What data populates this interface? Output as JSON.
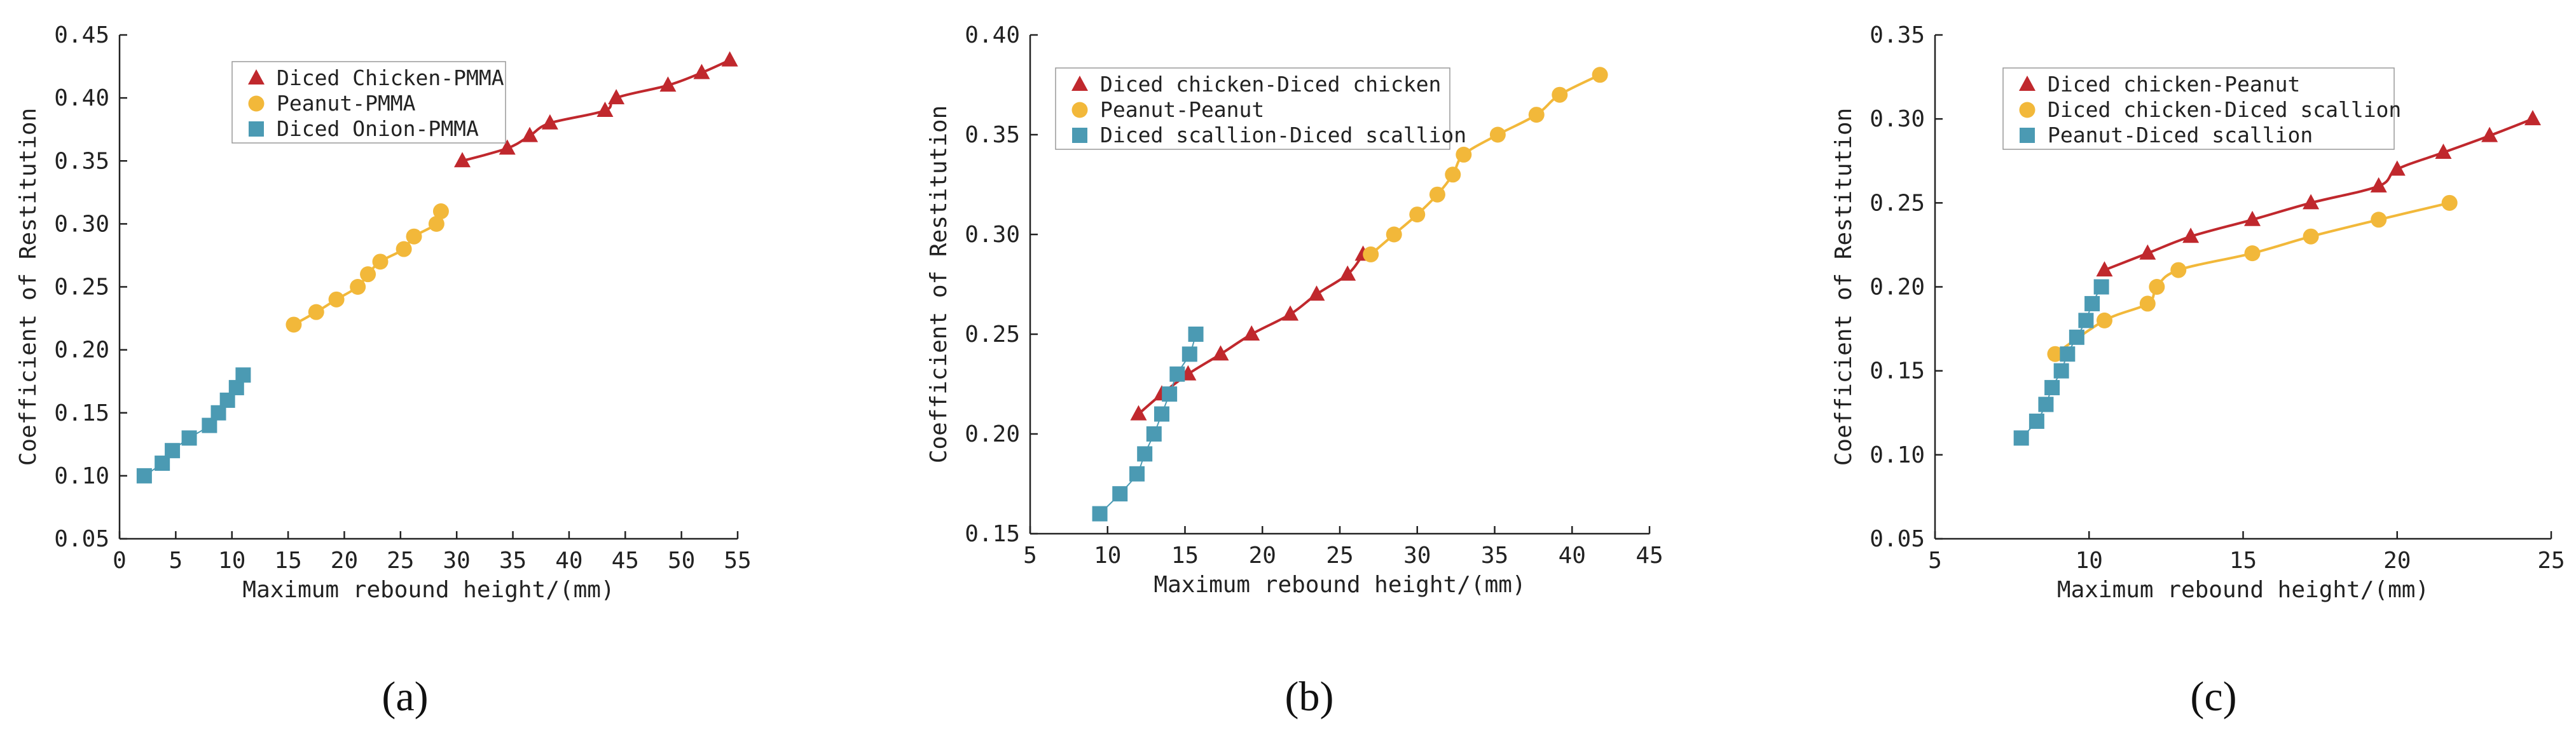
{
  "colors": {
    "red": "#c0282d",
    "yellow": "#f2b83a",
    "blue": "#4b9ab3"
  },
  "chart_data": [
    {
      "type": "scatter",
      "panel_label": "(a)",
      "xlabel": "Maximum rebound height/(mm)",
      "ylabel": "Coefficient of Restitution",
      "xlim": [
        0,
        55
      ],
      "ylim": [
        0.05,
        0.45
      ],
      "xticks": [
        "0",
        "5",
        "10",
        "15",
        "20",
        "25",
        "30",
        "35",
        "40",
        "45",
        "50",
        "55"
      ],
      "yticks": [
        "0.05",
        "0.10",
        "0.15",
        "0.20",
        "0.25",
        "0.30",
        "0.35",
        "0.40",
        "0.45"
      ],
      "legend_position": "top-left",
      "series": [
        {
          "name": "Diced Chicken-PMMA",
          "marker": "triangle",
          "color": "#c0282d",
          "x": [
            30.5,
            34.5,
            36.5,
            38.3,
            43.2,
            44.2,
            48.8,
            51.8,
            54.3
          ],
          "y": [
            0.35,
            0.36,
            0.37,
            0.38,
            0.39,
            0.4,
            0.41,
            0.42,
            0.43
          ]
        },
        {
          "name": "Peanut-PMMA",
          "marker": "circle",
          "color": "#f2b83a",
          "x": [
            15.5,
            17.5,
            19.3,
            21.2,
            22.1,
            23.2,
            25.3,
            26.2,
            28.2,
            28.6
          ],
          "y": [
            0.22,
            0.23,
            0.24,
            0.25,
            0.26,
            0.27,
            0.28,
            0.29,
            0.3,
            0.31
          ]
        },
        {
          "name": "Diced Onion-PMMA",
          "marker": "square",
          "color": "#4b9ab3",
          "x": [
            2.2,
            3.8,
            4.7,
            6.2,
            8.0,
            8.8,
            9.6,
            10.4,
            11.0
          ],
          "y": [
            0.1,
            0.11,
            0.12,
            0.13,
            0.14,
            0.15,
            0.16,
            0.17,
            0.18
          ]
        }
      ]
    },
    {
      "type": "scatter",
      "panel_label": "(b)",
      "xlabel": "Maximum rebound height/(mm)",
      "ylabel": "Coefficient of Restitution",
      "xlim": [
        5,
        45
      ],
      "ylim": [
        0.15,
        0.4
      ],
      "xticks": [
        "5",
        "10",
        "15",
        "20",
        "25",
        "30",
        "35",
        "40",
        "45"
      ],
      "yticks": [
        "0.15",
        "0.20",
        "0.25",
        "0.30",
        "0.35",
        "0.40"
      ],
      "legend_position": "top-left",
      "series": [
        {
          "name": "Diced chicken-Diced chicken",
          "marker": "triangle",
          "color": "#c0282d",
          "x": [
            12.0,
            13.5,
            15.2,
            17.3,
            19.3,
            21.8,
            23.5,
            25.5,
            26.5
          ],
          "y": [
            0.21,
            0.22,
            0.23,
            0.24,
            0.25,
            0.26,
            0.27,
            0.28,
            0.29
          ]
        },
        {
          "name": "Peanut-Peanut",
          "marker": "circle",
          "color": "#f2b83a",
          "x": [
            27.0,
            28.5,
            30.0,
            31.3,
            32.3,
            33.0,
            35.2,
            37.7,
            39.2,
            41.8
          ],
          "y": [
            0.29,
            0.3,
            0.31,
            0.32,
            0.33,
            0.34,
            0.35,
            0.36,
            0.37,
            0.38
          ]
        },
        {
          "name": "Diced scallion-Diced scallion",
          "marker": "square",
          "color": "#4b9ab3",
          "x": [
            9.5,
            10.8,
            11.9,
            12.4,
            13.0,
            13.5,
            14.0,
            14.5,
            15.3,
            15.7
          ],
          "y": [
            0.16,
            0.17,
            0.18,
            0.19,
            0.2,
            0.21,
            0.22,
            0.23,
            0.24,
            0.25
          ]
        }
      ]
    },
    {
      "type": "scatter",
      "panel_label": "(c)",
      "xlabel": "Maximum rebound height/(mm)",
      "ylabel": "Coefficient of Restitution",
      "xlim": [
        5,
        25
      ],
      "ylim": [
        0.05,
        0.35
      ],
      "xticks": [
        "5",
        "10",
        "15",
        "20",
        "25"
      ],
      "yticks": [
        "0.05",
        "0.10",
        "0.15",
        "0.20",
        "0.25",
        "0.30",
        "0.35"
      ],
      "legend_position": "top-left",
      "series": [
        {
          "name": "Diced chicken-Peanut",
          "marker": "triangle",
          "color": "#c0282d",
          "x": [
            10.5,
            11.9,
            13.3,
            15.3,
            17.2,
            19.4,
            20.0,
            21.5,
            23.0,
            24.4
          ],
          "y": [
            0.21,
            0.22,
            0.23,
            0.24,
            0.25,
            0.26,
            0.27,
            0.28,
            0.29,
            0.3
          ]
        },
        {
          "name": "Diced chicken-Diced scallion",
          "marker": "circle",
          "color": "#f2b83a",
          "x": [
            8.9,
            10.5,
            11.9,
            12.2,
            12.9,
            15.3,
            17.2,
            19.4,
            21.7
          ],
          "y": [
            0.16,
            0.18,
            0.19,
            0.2,
            0.21,
            0.22,
            0.23,
            0.24,
            0.25
          ]
        },
        {
          "name": "Peanut-Diced scallion",
          "marker": "square",
          "color": "#4b9ab3",
          "x": [
            7.8,
            8.3,
            8.6,
            8.8,
            9.1,
            9.3,
            9.6,
            9.9,
            10.1,
            10.4
          ],
          "y": [
            0.11,
            0.12,
            0.13,
            0.14,
            0.15,
            0.16,
            0.17,
            0.18,
            0.19,
            0.2
          ]
        }
      ]
    }
  ]
}
